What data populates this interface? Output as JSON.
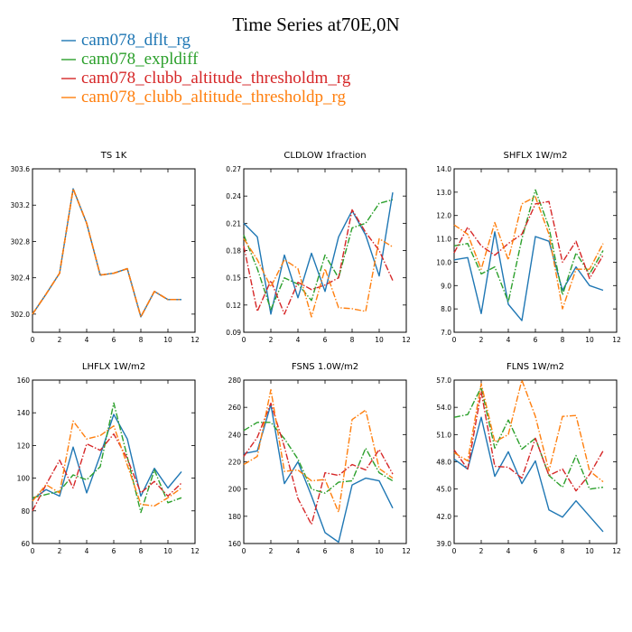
{
  "chart_data": {
    "type": "line",
    "title": "Time Series at70E,0N",
    "legend": [
      {
        "name": "cam078_dflt_rg",
        "color": "#1f77b4",
        "dash": "solid"
      },
      {
        "name": "cam078_expldiff",
        "color": "#2ca02c",
        "dash": "dashdot"
      },
      {
        "name": "cam078_clubb_altitude_thresholdm_rg",
        "color": "#d62728",
        "dash": "dashdot"
      },
      {
        "name": "cam078_clubb_altitude_thresholdp_rg",
        "color": "#ff7f0e",
        "dash": "dashdot"
      }
    ],
    "x": [
      0,
      1,
      2,
      3,
      4,
      5,
      6,
      7,
      8,
      9,
      10,
      11
    ],
    "xlim": [
      0,
      12
    ],
    "xticks": [
      "0",
      "2",
      "4",
      "6",
      "8",
      "10",
      "12"
    ],
    "panels": [
      {
        "title": "TS   1K",
        "ylim": [
          301.8,
          303.6
        ],
        "yticks": [
          "302.0",
          "302.4",
          "302.8",
          "303.2",
          "303.6"
        ],
        "ytick_values": [
          302.0,
          302.4,
          302.8,
          303.2,
          303.6
        ],
        "series": [
          [
            302.0,
            302.22,
            302.45,
            303.38,
            303.0,
            302.43,
            302.45,
            302.5,
            301.97,
            302.25,
            302.16,
            302.16
          ],
          [
            302.0,
            302.22,
            302.45,
            303.38,
            303.0,
            302.43,
            302.45,
            302.5,
            301.97,
            302.25,
            302.16,
            302.16
          ],
          [
            302.0,
            302.22,
            302.45,
            303.38,
            303.0,
            302.43,
            302.45,
            302.5,
            301.97,
            302.25,
            302.16,
            302.16
          ],
          [
            302.0,
            302.22,
            302.45,
            303.38,
            303.0,
            302.43,
            302.45,
            302.5,
            301.97,
            302.25,
            302.16,
            302.16
          ]
        ]
      },
      {
        "title": "CLDLOW   1fraction",
        "ylim": [
          0.09,
          0.27
        ],
        "yticks": [
          "0.09",
          "0.12",
          "0.15",
          "0.18",
          "0.21",
          "0.24",
          "0.27"
        ],
        "ytick_values": [
          0.09,
          0.12,
          0.15,
          0.18,
          0.21,
          0.24,
          0.27
        ],
        "series": [
          [
            0.21,
            0.195,
            0.11,
            0.175,
            0.128,
            0.177,
            0.135,
            0.195,
            0.224,
            0.197,
            0.152,
            0.244
          ],
          [
            0.197,
            0.16,
            0.115,
            0.15,
            0.143,
            0.125,
            0.175,
            0.15,
            0.205,
            0.21,
            0.232,
            0.236
          ],
          [
            0.185,
            0.113,
            0.147,
            0.11,
            0.145,
            0.137,
            0.142,
            0.15,
            0.225,
            0.2,
            0.18,
            0.147
          ],
          [
            0.193,
            0.17,
            0.14,
            0.17,
            0.16,
            0.107,
            0.16,
            0.117,
            0.116,
            0.113,
            0.193,
            0.184
          ]
        ]
      },
      {
        "title": "SHFLX   1W/m2",
        "ylim": [
          7.0,
          14.0
        ],
        "yticks": [
          "7.0",
          "8.0",
          "9.0",
          "10.0",
          "11.0",
          "12.0",
          "13.0",
          "14.0"
        ],
        "ytick_values": [
          7,
          8,
          9,
          10,
          11,
          12,
          13,
          14
        ],
        "series": [
          [
            10.1,
            10.2,
            7.8,
            11.3,
            8.2,
            7.5,
            11.1,
            10.9,
            8.8,
            9.8,
            9.0,
            8.8
          ],
          [
            10.7,
            10.8,
            9.5,
            9.8,
            8.3,
            11.0,
            13.1,
            11.5,
            8.6,
            10.4,
            9.5,
            10.5
          ],
          [
            10.4,
            11.5,
            10.7,
            10.3,
            10.8,
            11.2,
            12.5,
            12.6,
            10.0,
            10.9,
            9.3,
            10.3
          ],
          [
            11.6,
            11.2,
            9.7,
            11.7,
            10.1,
            12.5,
            12.8,
            11.2,
            8.0,
            9.7,
            9.7,
            10.8
          ]
        ]
      },
      {
        "title": "LHFLX   1W/m2",
        "ylim": [
          60,
          160
        ],
        "yticks": [
          "60",
          "80",
          "100",
          "120",
          "140",
          "160"
        ],
        "ytick_values": [
          60,
          80,
          100,
          120,
          140,
          160
        ],
        "series": [
          [
            87,
            93,
            89,
            119,
            91,
            114,
            139,
            124,
            89,
            106,
            94,
            104
          ],
          [
            88,
            90,
            92,
            102,
            99,
            107,
            146,
            113,
            79,
            105,
            85,
            88
          ],
          [
            80,
            96,
            111,
            94,
            121,
            117,
            127,
            112,
            91,
            98,
            89,
            97
          ],
          [
            86,
            96,
            91,
            135,
            124,
            126,
            132,
            108,
            84,
            83,
            88,
            94
          ]
        ]
      },
      {
        "title": "FSNS   1.0W/m2",
        "ylim": [
          160,
          280
        ],
        "yticks": [
          "160",
          "180",
          "200",
          "220",
          "240",
          "260",
          "280"
        ],
        "ytick_values": [
          160,
          180,
          200,
          220,
          240,
          260,
          280
        ],
        "series": [
          [
            226,
            228,
            262,
            204,
            220,
            195,
            168,
            161,
            203,
            208,
            206,
            186
          ],
          [
            243,
            249,
            249,
            237,
            222,
            200,
            197,
            205,
            206,
            230,
            212,
            206
          ],
          [
            224,
            238,
            263,
            231,
            193,
            174,
            212,
            210,
            218,
            214,
            229,
            211
          ],
          [
            218,
            224,
            273,
            213,
            214,
            206,
            207,
            183,
            251,
            258,
            215,
            208
          ]
        ]
      },
      {
        "title": "FLNS   1W/m2",
        "ylim": [
          39.0,
          57.0
        ],
        "yticks": [
          "39.0",
          "42.0",
          "45.0",
          "48.0",
          "51.0",
          "54.0",
          "57.0"
        ],
        "ytick_values": [
          39,
          42,
          45,
          48,
          51,
          54,
          57
        ],
        "series": [
          [
            48.3,
            47.2,
            52.9,
            46.4,
            49.1,
            45.6,
            48.1,
            42.7,
            41.9,
            43.7,
            42.0,
            40.3
          ],
          [
            52.9,
            53.2,
            56.2,
            49.5,
            52.6,
            49.4,
            50.6,
            46.5,
            45.2,
            48.7,
            45.0,
            45.2
          ],
          [
            49.3,
            47.2,
            55.7,
            47.5,
            47.4,
            46.2,
            50.6,
            46.5,
            47.2,
            44.8,
            46.6,
            49.2
          ],
          [
            49.0,
            48.1,
            56.6,
            50.2,
            51.0,
            57.0,
            53.0,
            47.0,
            53.0,
            53.1,
            47.0,
            45.8
          ]
        ]
      }
    ]
  }
}
